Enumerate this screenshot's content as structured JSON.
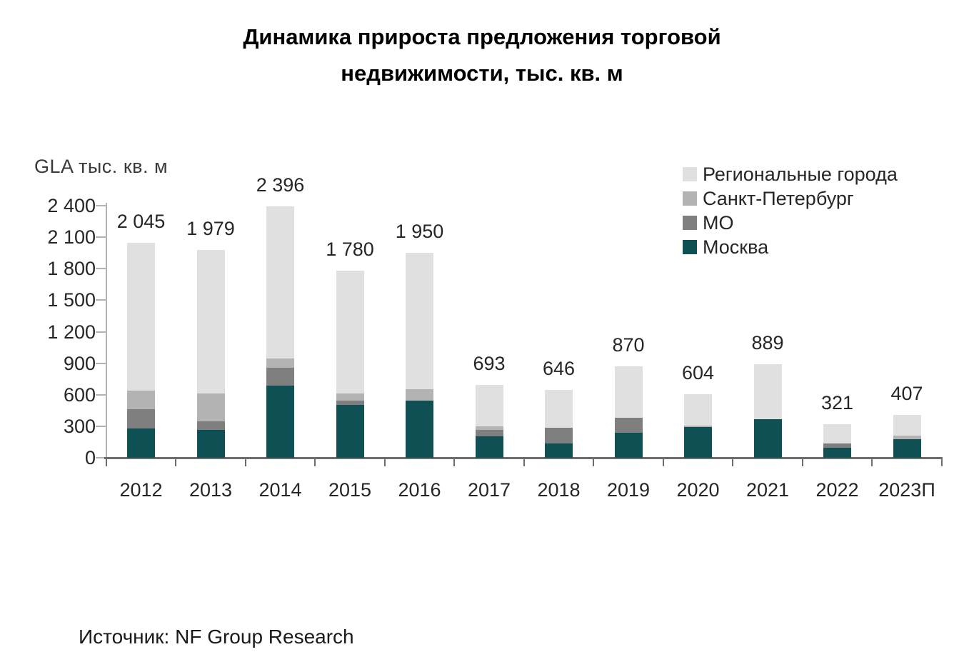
{
  "chart_data": {
    "type": "bar",
    "stacked": true,
    "title": "Динамика прироста предложения торговой недвижимости, тыс. кв. м",
    "axis_title": "GLA тыс. кв. м",
    "source": "Источник: NF Group Research",
    "categories": [
      "2012",
      "2013",
      "2014",
      "2015",
      "2016",
      "2017",
      "2018",
      "2019",
      "2020",
      "2021",
      "2022",
      "2023П"
    ],
    "series": [
      {
        "name": "Москва",
        "color": "#0e5053",
        "values": [
          280,
          265,
          690,
          500,
          545,
          205,
          135,
          240,
          290,
          365,
          97,
          175
        ]
      },
      {
        "name": "МО",
        "color": "#7f7f7f",
        "values": [
          180,
          85,
          165,
          45,
          0,
          60,
          150,
          140,
          0,
          0,
          36,
          0
        ]
      },
      {
        "name": "Санкт-Петербург",
        "color": "#b3b3b3",
        "values": [
          180,
          265,
          90,
          65,
          110,
          35,
          0,
          0,
          15,
          0,
          0,
          35
        ]
      },
      {
        "name": "Региональные города",
        "color": "#e0e0e0",
        "values": [
          1405,
          1364,
          1451,
          1170,
          1295,
          393,
          361,
          490,
          299,
          524,
          188,
          197
        ]
      }
    ],
    "totals_labels": [
      "2 045",
      "1 979",
      "2 396",
      "1 780",
      "1 950",
      "693",
      "646",
      "870",
      "604",
      "889",
      "321",
      "407"
    ],
    "y_ticks": [
      "2 400",
      "2 100",
      "1 800",
      "1 500",
      "1 200",
      "900",
      "600",
      "300",
      "0"
    ],
    "ylim": [
      0,
      2400
    ],
    "grid": false,
    "legend": {
      "position": "top-right",
      "items": [
        {
          "label": "Региональные города",
          "color": "#e0e0e0"
        },
        {
          "label": "Санкт-Петербург",
          "color": "#b3b3b3"
        },
        {
          "label": "МО",
          "color": "#7f7f7f"
        },
        {
          "label": "Москва",
          "color": "#0e5053"
        }
      ]
    }
  }
}
